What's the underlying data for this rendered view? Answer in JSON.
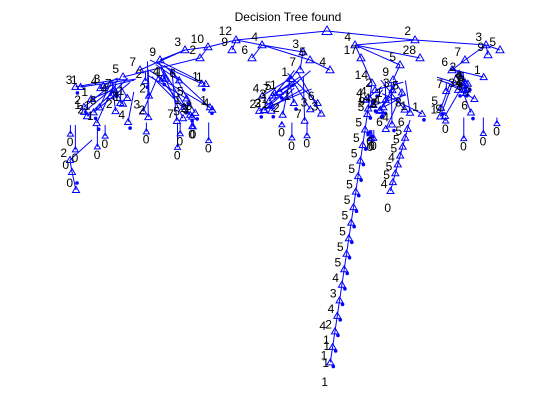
{
  "figure": {
    "title": "Decision Tree found",
    "colors": {
      "tree": "#0000ff",
      "text": "#000000",
      "background": "#ffffff"
    }
  },
  "tree": {
    "root": {
      "marker": "triangle"
    },
    "level1_labels": [
      "12",
      "2"
    ],
    "level2_labels": [
      "10",
      "9",
      "4",
      "4",
      "3"
    ],
    "level3_labels": [
      "3",
      "2",
      "6",
      "3",
      "5",
      "17",
      "5",
      "28",
      "7",
      "9",
      "5"
    ],
    "level4_labels": [
      "9",
      "7",
      "5",
      "7",
      "4",
      "14",
      "9",
      "6"
    ],
    "clusters": [
      {
        "name": "left-cluster",
        "labels": [
          "6",
          "4",
          "2",
          "1",
          "1",
          "1",
          "4",
          "2",
          "1",
          "1",
          "2",
          "3",
          "1",
          "7",
          "7",
          "4",
          "3",
          "1"
        ],
        "leaf_labels": [
          "0",
          "0",
          "0",
          "0"
        ]
      },
      {
        "name": "mid-left-cluster",
        "labels": [
          "5",
          "4",
          "3",
          "2",
          "1",
          "6",
          "1",
          "2",
          "3",
          "4",
          "2",
          "1",
          "5",
          "1",
          "7",
          "3",
          "2",
          "1"
        ],
        "leaf_labels": [
          "0",
          "0",
          "0",
          "0",
          "0",
          "0"
        ]
      },
      {
        "name": "center-cluster",
        "labels": [
          "3",
          "1",
          "1",
          "2",
          "6",
          "7",
          "2",
          "4",
          "3",
          "5",
          "1",
          "3",
          "2",
          "1",
          "3",
          "7",
          "1"
        ],
        "leaf_labels": [
          "0",
          "0",
          "0"
        ]
      },
      {
        "name": "mid-right-cluster",
        "labels": [
          "14",
          "4",
          "1",
          "6",
          "9",
          "3",
          "8",
          "3",
          "4",
          "2",
          "1",
          "5",
          "1",
          "4",
          "2"
        ],
        "leaf_labels": [
          "0",
          "0",
          "0",
          "0"
        ]
      },
      {
        "name": "right-cluster",
        "labels": [
          "7",
          "6",
          "5",
          "8",
          "4",
          "1",
          "3",
          "2",
          "5",
          "9",
          "3",
          "4",
          "7",
          "2",
          "1"
        ],
        "leaf_labels": [
          "0",
          "0",
          "0",
          "0"
        ]
      }
    ],
    "long_chain": {
      "labels": [
        "4",
        "5",
        "5",
        "5",
        "5",
        "5",
        "5",
        "5",
        "5",
        "5",
        "5",
        "5",
        "4",
        "3",
        "4",
        "2",
        "1",
        "1"
      ],
      "bottom_labels": [
        "4",
        "1",
        "1",
        "1"
      ]
    },
    "side_chain": {
      "labels": [
        "6",
        "5",
        "5",
        "5",
        "4",
        "5",
        "5",
        "4"
      ],
      "leaf_label": "0"
    },
    "left_bottom": {
      "labels": [
        "2",
        "0",
        "0"
      ]
    }
  }
}
